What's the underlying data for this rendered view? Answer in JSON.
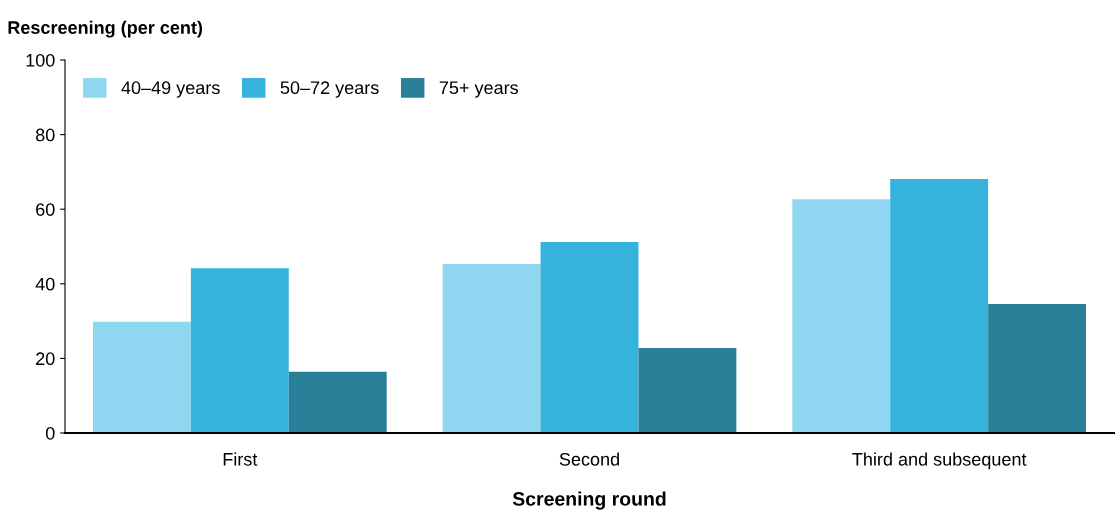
{
  "chart_data": {
    "type": "bar",
    "xlabel": "Screening round",
    "ylabel": "Rescreening (per cent)",
    "categories": [
      "First",
      "Second",
      "Third and subsequent"
    ],
    "series": [
      {
        "name": "40–49 years",
        "color": "#8fd7f0",
        "values": [
          29.8,
          45.3,
          62.7
        ]
      },
      {
        "name": "50–72 years",
        "color": "#35b3dc",
        "values": [
          44.2,
          51.2,
          68.1
        ]
      },
      {
        "name": "75+ years",
        "color": "#2a7f98",
        "values": [
          16.4,
          22.8,
          34.6
        ]
      }
    ],
    "ylim": [
      0,
      100
    ],
    "yticks": [
      0,
      20,
      40,
      60,
      80,
      100
    ],
    "grid": false,
    "legend": "top left"
  }
}
